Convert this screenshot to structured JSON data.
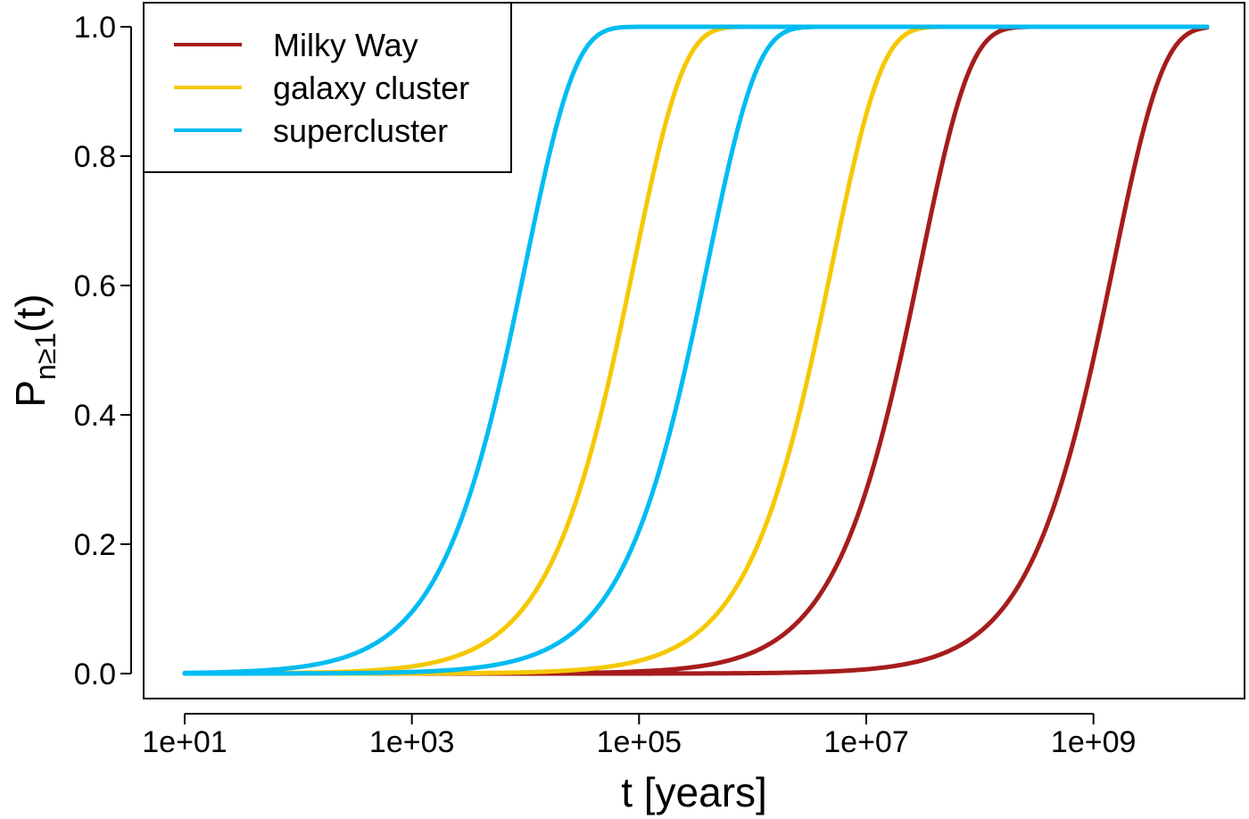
{
  "chart_data": {
    "type": "line",
    "x_scale": "log10",
    "xlabel": "t [years]",
    "ylabel": {
      "main": "P",
      "subscript": "n≥1",
      "suffix": "(t)"
    },
    "xlim": [
      10,
      10000000000
    ],
    "ylim": [
      0,
      1
    ],
    "x_ticks": [
      {
        "value": 10,
        "label": "1e+01"
      },
      {
        "value": 1000,
        "label": "1e+03"
      },
      {
        "value": 100000,
        "label": "1e+05"
      },
      {
        "value": 10000000,
        "label": "1e+07"
      },
      {
        "value": 1000000000,
        "label": "1e+09"
      }
    ],
    "y_ticks": [
      {
        "value": 0.0,
        "label": "0.0"
      },
      {
        "value": 0.2,
        "label": "0.2"
      },
      {
        "value": 0.4,
        "label": "0.4"
      },
      {
        "value": 0.6,
        "label": "0.6"
      },
      {
        "value": 0.8,
        "label": "0.8"
      },
      {
        "value": 1.0,
        "label": "1.0"
      }
    ],
    "grid": false,
    "legend_position": "top-left",
    "legend": [
      {
        "label": "Milky Way",
        "color": "#a61c1c"
      },
      {
        "label": "galaxy cluster",
        "color": "#f5c800"
      },
      {
        "label": "supercluster",
        "color": "#00bcf2"
      }
    ],
    "curve_form": "1 - exp(-t / tau)",
    "series": [
      {
        "legend_index": 0,
        "color": "#a61c1c",
        "tau": 30000000
      },
      {
        "legend_index": 0,
        "color": "#a61c1c",
        "tau": 1500000000
      },
      {
        "legend_index": 1,
        "color": "#f5c800",
        "tau": 90000
      },
      {
        "legend_index": 1,
        "color": "#f5c800",
        "tau": 5000000
      },
      {
        "legend_index": 2,
        "color": "#00bcf2",
        "tau": 10000
      },
      {
        "legend_index": 2,
        "color": "#00bcf2",
        "tau": 400000
      }
    ]
  }
}
